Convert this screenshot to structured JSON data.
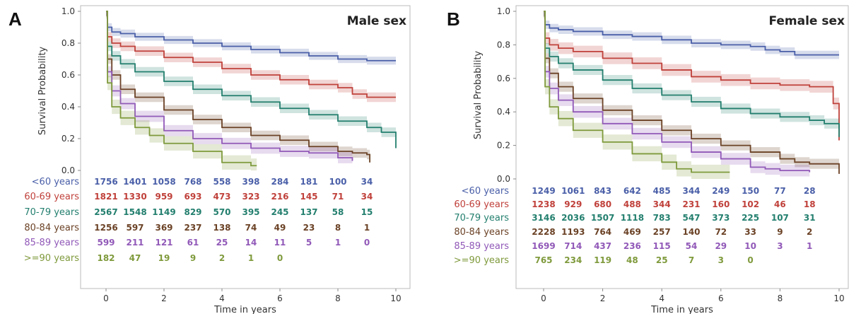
{
  "chart_data": [
    {
      "type": "line",
      "panel": "A",
      "title": "Male sex",
      "xlabel": "Time in years",
      "ylabel": "Survival Probability",
      "xlim": [
        -0.8,
        10.5
      ],
      "ylim": [
        0,
        1.0
      ],
      "xticks": [
        0,
        2,
        4,
        6,
        8,
        10
      ],
      "yticks": [
        0.0,
        0.2,
        0.4,
        0.6,
        0.8,
        1.0
      ],
      "risk_times": [
        0,
        1,
        2,
        3,
        4,
        5,
        6,
        7,
        8,
        9
      ],
      "series": [
        {
          "name": "<60 years",
          "color": "#4a5fa8",
          "band": 0.025,
          "x": [
            0,
            0.05,
            0.2,
            0.5,
            1,
            2,
            3,
            4,
            5,
            6,
            7,
            8,
            8.5,
            9,
            10
          ],
          "y": [
            1.0,
            0.9,
            0.87,
            0.86,
            0.84,
            0.82,
            0.8,
            0.78,
            0.76,
            0.74,
            0.72,
            0.7,
            0.7,
            0.69,
            0.69
          ],
          "at_risk": [
            "1756",
            "1401",
            "1058",
            "768",
            "558",
            "398",
            "284",
            "181",
            "100",
            "34"
          ]
        },
        {
          "name": "60-69 years",
          "color": "#c0413b",
          "band": 0.03,
          "x": [
            0,
            0.05,
            0.2,
            0.5,
            1,
            2,
            3,
            4,
            5,
            6,
            7,
            8,
            8.5,
            9,
            10
          ],
          "y": [
            1.0,
            0.84,
            0.8,
            0.78,
            0.75,
            0.71,
            0.68,
            0.64,
            0.6,
            0.57,
            0.54,
            0.52,
            0.48,
            0.46,
            0.46
          ],
          "at_risk": [
            "1821",
            "1330",
            "959",
            "693",
            "473",
            "323",
            "216",
            "145",
            "71",
            "34"
          ]
        },
        {
          "name": "70-79 years",
          "color": "#237f6e",
          "band": 0.03,
          "x": [
            0,
            0.05,
            0.2,
            0.5,
            1,
            2,
            3,
            4,
            5,
            6,
            7,
            8,
            9,
            9.5,
            10
          ],
          "y": [
            1.0,
            0.78,
            0.72,
            0.67,
            0.62,
            0.56,
            0.51,
            0.47,
            0.43,
            0.39,
            0.35,
            0.31,
            0.27,
            0.24,
            0.14
          ],
          "at_risk": [
            "2567",
            "1548",
            "1149",
            "829",
            "570",
            "395",
            "245",
            "137",
            "58",
            "15"
          ]
        },
        {
          "name": "80-84 years",
          "color": "#6b4226",
          "band": 0.03,
          "x": [
            0,
            0.05,
            0.2,
            0.5,
            1,
            2,
            3,
            4,
            5,
            6,
            7,
            8,
            8.5,
            9,
            9.1
          ],
          "y": [
            1.0,
            0.7,
            0.6,
            0.51,
            0.46,
            0.38,
            0.32,
            0.27,
            0.22,
            0.19,
            0.15,
            0.12,
            0.11,
            0.1,
            0.05
          ],
          "at_risk": [
            "1256",
            "597",
            "369",
            "237",
            "138",
            "74",
            "49",
            "23",
            "8",
            "1"
          ]
        },
        {
          "name": "85-89 years",
          "color": "#9159b8",
          "band": 0.035,
          "x": [
            0,
            0.05,
            0.2,
            0.5,
            1,
            2,
            3,
            4,
            5,
            6,
            7,
            8,
            8.5
          ],
          "y": [
            1.0,
            0.62,
            0.5,
            0.42,
            0.34,
            0.25,
            0.2,
            0.17,
            0.14,
            0.12,
            0.11,
            0.08,
            0.06
          ],
          "at_risk": [
            "599",
            "211",
            "121",
            "61",
            "25",
            "14",
            "11",
            "5",
            "1",
            "0"
          ]
        },
        {
          "name": ">=90  years",
          "color": "#7f9a3c",
          "band": 0.045,
          "x": [
            0,
            0.05,
            0.2,
            0.5,
            1,
            1.5,
            2,
            3,
            4,
            5,
            5.2
          ],
          "y": [
            1.0,
            0.55,
            0.4,
            0.33,
            0.27,
            0.22,
            0.17,
            0.12,
            0.05,
            0.03,
            0.03
          ],
          "at_risk": [
            "182",
            "47",
            "19",
            "9",
            "2",
            "1",
            "0",
            "",
            "",
            ""
          ]
        }
      ]
    },
    {
      "type": "line",
      "panel": "B",
      "title": "Female sex",
      "xlabel": "Time in years",
      "ylabel": "Survival Probability",
      "xlim": [
        -0.8,
        10.5
      ],
      "ylim": [
        0,
        1.0
      ],
      "xticks": [
        0,
        2,
        4,
        6,
        8,
        10
      ],
      "yticks": [
        0.0,
        0.2,
        0.4,
        0.6,
        0.8,
        1.0
      ],
      "risk_times": [
        0,
        1,
        2,
        3,
        4,
        5,
        6,
        7,
        8,
        9
      ],
      "series": [
        {
          "name": "<60 years",
          "color": "#4a5fa8",
          "band": 0.025,
          "x": [
            0,
            0.05,
            0.2,
            0.5,
            1,
            2,
            3,
            4,
            5,
            6,
            7,
            7.5,
            8,
            8.5,
            9,
            10
          ],
          "y": [
            1.0,
            0.92,
            0.9,
            0.89,
            0.88,
            0.86,
            0.85,
            0.83,
            0.81,
            0.8,
            0.79,
            0.77,
            0.76,
            0.74,
            0.74,
            0.74
          ],
          "at_risk": [
            "1249",
            "1061",
            "843",
            "642",
            "485",
            "344",
            "249",
            "150",
            "77",
            "28"
          ]
        },
        {
          "name": "60-69 years",
          "color": "#c0413b",
          "band": 0.035,
          "x": [
            0,
            0.05,
            0.2,
            0.5,
            1,
            2,
            3,
            4,
            5,
            6,
            7,
            8,
            9,
            9.5,
            9.8,
            10
          ],
          "y": [
            1.0,
            0.84,
            0.8,
            0.78,
            0.76,
            0.72,
            0.69,
            0.65,
            0.61,
            0.59,
            0.57,
            0.56,
            0.55,
            0.55,
            0.45,
            0.23
          ],
          "at_risk": [
            "1238",
            "929",
            "680",
            "488",
            "344",
            "231",
            "160",
            "102",
            "46",
            "18"
          ]
        },
        {
          "name": "70-79 years",
          "color": "#237f6e",
          "band": 0.03,
          "x": [
            0,
            0.05,
            0.2,
            0.5,
            1,
            2,
            3,
            4,
            5,
            6,
            7,
            8,
            9,
            9.5,
            10
          ],
          "y": [
            1.0,
            0.78,
            0.73,
            0.69,
            0.65,
            0.59,
            0.54,
            0.5,
            0.46,
            0.42,
            0.39,
            0.37,
            0.35,
            0.33,
            0.25
          ],
          "at_risk": [
            "3146",
            "2036",
            "1507",
            "1118",
            "783",
            "547",
            "373",
            "225",
            "107",
            "31"
          ]
        },
        {
          "name": "80-84 years",
          "color": "#6b4226",
          "band": 0.03,
          "x": [
            0,
            0.05,
            0.2,
            0.5,
            1,
            2,
            3,
            4,
            5,
            6,
            7,
            8,
            8.5,
            9,
            10
          ],
          "y": [
            1.0,
            0.72,
            0.63,
            0.55,
            0.48,
            0.41,
            0.35,
            0.29,
            0.24,
            0.2,
            0.16,
            0.12,
            0.1,
            0.09,
            0.03
          ],
          "at_risk": [
            "2228",
            "1193",
            "764",
            "469",
            "257",
            "140",
            "72",
            "33",
            "9",
            "2"
          ]
        },
        {
          "name": "85-89 years",
          "color": "#9159b8",
          "band": 0.035,
          "x": [
            0,
            0.05,
            0.2,
            0.5,
            1,
            2,
            3,
            4,
            5,
            6,
            7,
            7.5,
            8,
            9
          ],
          "y": [
            1.0,
            0.64,
            0.54,
            0.47,
            0.4,
            0.33,
            0.27,
            0.22,
            0.16,
            0.12,
            0.07,
            0.06,
            0.05,
            0.04
          ],
          "at_risk": [
            "1699",
            "714",
            "437",
            "236",
            "115",
            "54",
            "29",
            "10",
            "3",
            "1"
          ]
        },
        {
          "name": ">=90  years",
          "color": "#7f9a3c",
          "band": 0.045,
          "x": [
            0,
            0.05,
            0.2,
            0.5,
            1,
            2,
            3,
            4,
            4.5,
            5,
            6,
            6.3
          ],
          "y": [
            1.0,
            0.55,
            0.43,
            0.36,
            0.29,
            0.22,
            0.15,
            0.1,
            0.06,
            0.04,
            0.04,
            0.04
          ],
          "at_risk": [
            "765",
            "234",
            "119",
            "48",
            "25",
            "7",
            "3",
            "0",
            "",
            ""
          ]
        }
      ]
    }
  ]
}
